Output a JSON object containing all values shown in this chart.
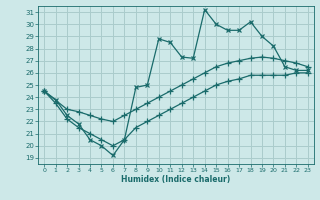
{
  "title": "",
  "xlabel": "Humidex (Indice chaleur)",
  "xlim": [
    -0.5,
    23.5
  ],
  "ylim": [
    18.5,
    31.5
  ],
  "xticks": [
    0,
    1,
    2,
    3,
    4,
    5,
    6,
    7,
    8,
    9,
    10,
    11,
    12,
    13,
    14,
    15,
    16,
    17,
    18,
    19,
    20,
    21,
    22,
    23
  ],
  "yticks": [
    19,
    20,
    21,
    22,
    23,
    24,
    25,
    26,
    27,
    28,
    29,
    30,
    31
  ],
  "bg_color": "#cde8e8",
  "grid_color": "#aacccc",
  "line_color": "#1a6b6b",
  "line1_x": [
    0,
    1,
    2,
    3,
    4,
    5,
    6,
    7,
    8,
    9,
    10,
    11,
    12,
    13,
    14,
    15,
    16,
    17,
    18,
    19,
    20,
    21,
    22,
    23
  ],
  "line1_y": [
    24.5,
    23.8,
    22.5,
    21.8,
    20.5,
    20.0,
    19.2,
    20.5,
    24.8,
    25.0,
    28.8,
    28.5,
    27.3,
    27.2,
    31.2,
    30.0,
    29.5,
    29.5,
    30.2,
    29.0,
    28.2,
    26.5,
    26.2,
    26.2
  ],
  "line2_x": [
    0,
    2,
    3,
    4,
    5,
    6,
    7,
    8,
    9,
    10,
    11,
    12,
    13,
    14,
    15,
    16,
    17,
    18,
    19,
    20,
    21,
    22,
    23
  ],
  "line2_y": [
    24.5,
    23.0,
    22.8,
    22.5,
    22.2,
    22.0,
    22.5,
    23.0,
    23.5,
    24.0,
    24.5,
    25.0,
    25.5,
    26.0,
    26.5,
    26.8,
    27.0,
    27.2,
    27.3,
    27.2,
    27.0,
    26.8,
    26.5
  ],
  "line3_x": [
    0,
    1,
    2,
    3,
    4,
    5,
    6,
    7,
    8,
    9,
    10,
    11,
    12,
    13,
    14,
    15,
    16,
    17,
    18,
    19,
    20,
    21,
    22,
    23
  ],
  "line3_y": [
    24.5,
    23.5,
    22.2,
    21.5,
    21.0,
    20.5,
    20.0,
    20.5,
    21.5,
    22.0,
    22.5,
    23.0,
    23.5,
    24.0,
    24.5,
    25.0,
    25.3,
    25.5,
    25.8,
    25.8,
    25.8,
    25.8,
    26.0,
    26.0
  ]
}
